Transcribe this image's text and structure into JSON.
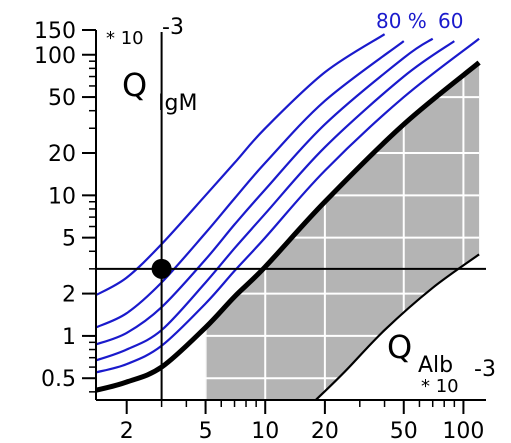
{
  "chart_data": {
    "type": "line",
    "title": "",
    "scale": {
      "x": "log",
      "y": "log"
    },
    "xlim": [
      1.4,
      130
    ],
    "ylim": [
      0.35,
      150
    ],
    "x_ticks": [
      {
        "value": 2,
        "label": "2"
      },
      {
        "value": 5,
        "label": "5"
      },
      {
        "value": 10,
        "label": "10"
      },
      {
        "value": 20,
        "label": "20"
      },
      {
        "value": 50,
        "label": "50"
      },
      {
        "value": 100,
        "label": "100"
      }
    ],
    "y_ticks": [
      {
        "value": 0.5,
        "label": "0.5"
      },
      {
        "value": 1,
        "label": "1"
      },
      {
        "value": 2,
        "label": "2"
      },
      {
        "value": 5,
        "label": "5"
      },
      {
        "value": 10,
        "label": "10"
      },
      {
        "value": 20,
        "label": "20"
      },
      {
        "value": 50,
        "label": "50"
      },
      {
        "value": 100,
        "label": "100"
      },
      {
        "value": 150,
        "label": "150"
      }
    ],
    "y_axis": {
      "label_main": "Q",
      "label_sub": "IgM",
      "multiplier_base": "* 10",
      "multiplier_exp": "-3"
    },
    "x_axis": {
      "label_main": "Q",
      "label_sub": "Alb",
      "multiplier_base": "* 10",
      "multiplier_exp": "-3"
    },
    "curve_labels": [
      "80 %",
      "60"
    ],
    "marker": {
      "x": 3,
      "y": 3
    },
    "colors": {
      "intrathecal_lines": "#1a1acc",
      "reference_line": "#000000",
      "shaded_region": "#b4b4b4",
      "grid": "#ffffff"
    },
    "series": [
      {
        "role": "intrathecal",
        "values": [
          [
            1.4,
            1.95
          ],
          [
            2,
            2.6
          ],
          [
            3,
            4.5
          ],
          [
            5,
            10
          ],
          [
            7,
            17
          ],
          [
            10,
            30
          ],
          [
            20,
            75
          ],
          [
            40,
            140
          ]
        ]
      },
      {
        "role": "intrathecal",
        "values": [
          [
            1.4,
            1.15
          ],
          [
            2,
            1.45
          ],
          [
            3,
            2.4
          ],
          [
            5,
            5.4
          ],
          [
            7,
            9.5
          ],
          [
            10,
            17
          ],
          [
            20,
            47
          ],
          [
            50,
            125
          ]
        ]
      },
      {
        "role": "intrathecal",
        "values": [
          [
            1.4,
            0.87
          ],
          [
            2,
            1.05
          ],
          [
            3,
            1.6
          ],
          [
            5,
            3.5
          ],
          [
            7,
            6.2
          ],
          [
            10,
            11
          ],
          [
            20,
            32
          ],
          [
            50,
            95
          ],
          [
            70,
            130
          ]
        ]
      },
      {
        "role": "intrathecal",
        "values": [
          [
            1.4,
            0.67
          ],
          [
            2,
            0.8
          ],
          [
            3,
            1.1
          ],
          [
            5,
            2.4
          ],
          [
            7,
            4.2
          ],
          [
            10,
            7.4
          ],
          [
            20,
            22
          ],
          [
            50,
            70
          ],
          [
            90,
            125
          ]
        ]
      },
      {
        "role": "intrathecal",
        "values": [
          [
            1.4,
            0.55
          ],
          [
            2,
            0.63
          ],
          [
            3,
            0.85
          ],
          [
            5,
            1.7
          ],
          [
            7,
            2.9
          ],
          [
            10,
            5
          ],
          [
            20,
            15
          ],
          [
            50,
            50
          ],
          [
            120,
            130
          ]
        ]
      },
      {
        "role": "upper_reference",
        "values": [
          [
            1.4,
            0.41
          ],
          [
            2,
            0.47
          ],
          [
            3,
            0.6
          ],
          [
            5,
            1.15
          ],
          [
            7,
            1.9
          ],
          [
            10,
            3.1
          ],
          [
            20,
            9
          ],
          [
            50,
            32
          ],
          [
            120,
            88
          ]
        ]
      },
      {
        "role": "lower_reference",
        "values": [
          [
            18,
            0.35
          ],
          [
            25,
            0.55
          ],
          [
            40,
            1.1
          ],
          [
            70,
            2.2
          ],
          [
            120,
            3.8
          ]
        ]
      }
    ]
  }
}
